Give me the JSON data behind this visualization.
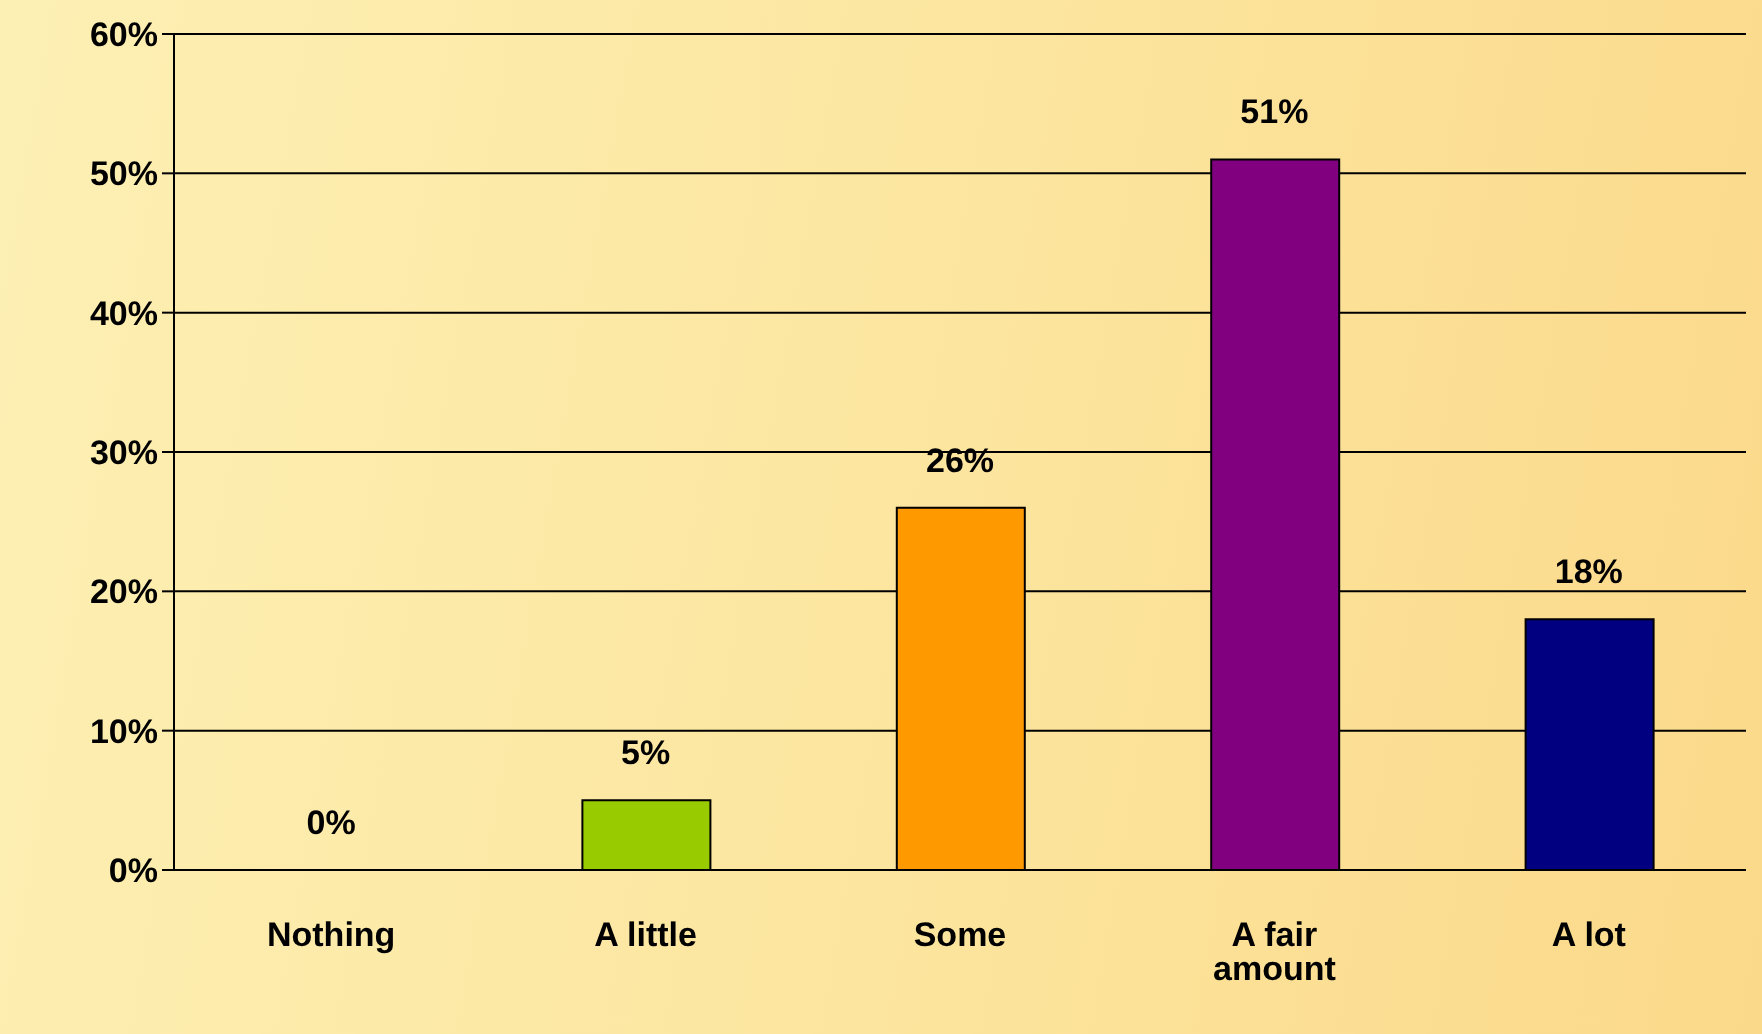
{
  "chart_data": {
    "type": "bar",
    "categories": [
      "Nothing",
      "A little",
      "Some",
      "A fair amount",
      "A lot"
    ],
    "values": [
      0,
      5,
      26,
      51,
      18
    ],
    "colors": [
      "#000000",
      "#99cc00",
      "#ff9900",
      "#800080",
      "#000080"
    ],
    "value_labels": [
      "0%",
      "5%",
      "26%",
      "51%",
      "18%"
    ],
    "ylim": [
      0,
      60
    ],
    "yticks": [
      {
        "value": 0,
        "label": "0%"
      },
      {
        "value": 10,
        "label": "10%"
      },
      {
        "value": 20,
        "label": "20%"
      },
      {
        "value": 30,
        "label": "30%"
      },
      {
        "value": 40,
        "label": "40%"
      },
      {
        "value": 50,
        "label": "50%"
      },
      {
        "value": 60,
        "label": "60%"
      }
    ],
    "grid": "y",
    "legend": false
  }
}
